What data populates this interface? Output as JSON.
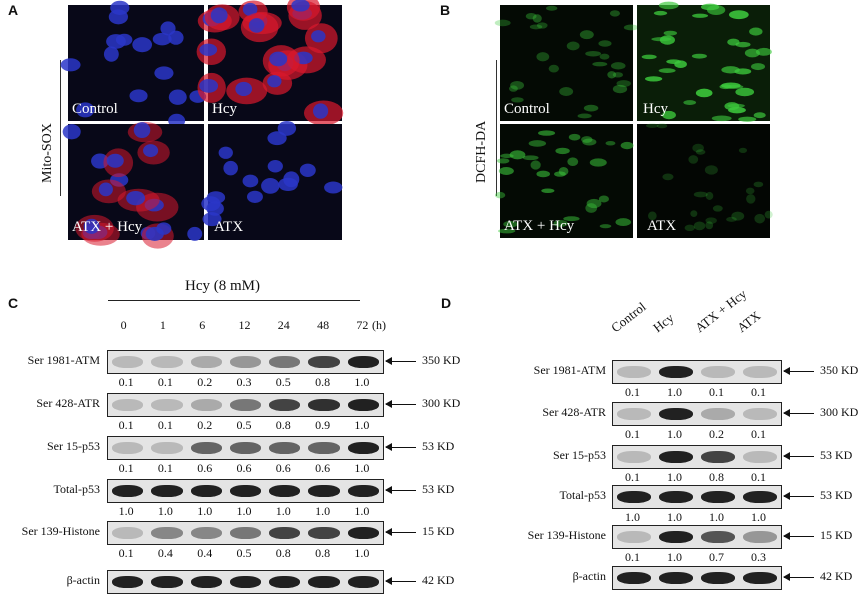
{
  "panel_a": {
    "letter": "A",
    "side_label": "Mito-SOX",
    "tiles": [
      "Control",
      "Hcy",
      "ATX + Hcy",
      "ATX"
    ]
  },
  "panel_b": {
    "letter": "B",
    "side_label": "DCFH-DA",
    "tiles": [
      "Control",
      "Hcy",
      "ATX + Hcy",
      "ATX"
    ]
  },
  "panel_c": {
    "letter": "C",
    "treatment": "Hcy (8 mM)",
    "time_unit": "(h)",
    "timepoints": [
      "0",
      "1",
      "6",
      "12",
      "24",
      "48",
      "72"
    ],
    "rows": [
      {
        "label": "Ser 1981-ATM",
        "kd": "350 KD",
        "values": [
          "0.1",
          "0.1",
          "0.2",
          "0.3",
          "0.5",
          "0.8",
          "1.0"
        ],
        "intensity": [
          0.1,
          0.1,
          0.2,
          0.3,
          0.5,
          0.8,
          1.0
        ]
      },
      {
        "label": "Ser 428-ATR",
        "kd": "300 KD",
        "values": [
          "0.1",
          "0.1",
          "0.2",
          "0.5",
          "0.8",
          "0.9",
          "1.0"
        ],
        "intensity": [
          0.1,
          0.1,
          0.2,
          0.5,
          0.8,
          0.9,
          1.0
        ]
      },
      {
        "label": "Ser 15-p53",
        "kd": "53 KD",
        "values": [
          "0.1",
          "0.1",
          "0.6",
          "0.6",
          "0.6",
          "0.6",
          "1.0"
        ],
        "intensity": [
          0.1,
          0.1,
          0.6,
          0.6,
          0.6,
          0.6,
          1.0
        ]
      },
      {
        "label": "Total-p53",
        "kd": "53 KD",
        "values": [
          "1.0",
          "1.0",
          "1.0",
          "1.0",
          "1.0",
          "1.0",
          "1.0"
        ],
        "intensity": [
          1.0,
          1.0,
          1.0,
          1.0,
          1.0,
          1.0,
          1.0
        ]
      },
      {
        "label": "Ser 139-Histone",
        "kd": "15 KD",
        "values": [
          "0.1",
          "0.4",
          "0.4",
          "0.5",
          "0.8",
          "0.8",
          "1.0"
        ],
        "intensity": [
          0.1,
          0.4,
          0.4,
          0.5,
          0.8,
          0.8,
          1.0
        ]
      },
      {
        "label": "β-actin",
        "kd": "42 KD",
        "values": [],
        "intensity": [
          1.0,
          1.0,
          1.0,
          1.0,
          1.0,
          1.0,
          1.0
        ]
      }
    ]
  },
  "panel_d": {
    "letter": "D",
    "lanes": [
      "Control",
      "Hcy",
      "ATX + Hcy",
      "ATX"
    ],
    "rows": [
      {
        "label": "Ser 1981-ATM",
        "kd": "350 KD",
        "values": [
          "0.1",
          "1.0",
          "0.1",
          "0.1"
        ],
        "intensity": [
          0.1,
          1.0,
          0.1,
          0.1
        ]
      },
      {
        "label": "Ser 428-ATR",
        "kd": "300 KD",
        "values": [
          "0.1",
          "1.0",
          "0.2",
          "0.1"
        ],
        "intensity": [
          0.1,
          1.0,
          0.2,
          0.1
        ]
      },
      {
        "label": "Ser 15-p53",
        "kd": "53 KD",
        "values": [
          "0.1",
          "1.0",
          "0.8",
          "0.1"
        ],
        "intensity": [
          0.1,
          1.0,
          0.8,
          0.1
        ]
      },
      {
        "label": "Total-p53",
        "kd": "53 KD",
        "values": [
          "1.0",
          "1.0",
          "1.0",
          "1.0"
        ],
        "intensity": [
          1.0,
          1.0,
          1.0,
          1.0
        ]
      },
      {
        "label": "Ser 139-Histone",
        "kd": "15 KD",
        "values": [
          "0.1",
          "1.0",
          "0.7",
          "0.3"
        ],
        "intensity": [
          0.1,
          1.0,
          0.7,
          0.3
        ]
      },
      {
        "label": "β-actin",
        "kd": "42 KD",
        "values": [],
        "intensity": [
          1.0,
          1.0,
          1.0,
          1.0
        ]
      }
    ]
  },
  "colors": {
    "mitosox_background": "#080818",
    "nucleus": "#2a36c8",
    "mitosox_red": "#d8182c",
    "dcfh_background": "#040a04",
    "dcfh_green": "#3cc83c",
    "band": "#1a1a1a"
  }
}
